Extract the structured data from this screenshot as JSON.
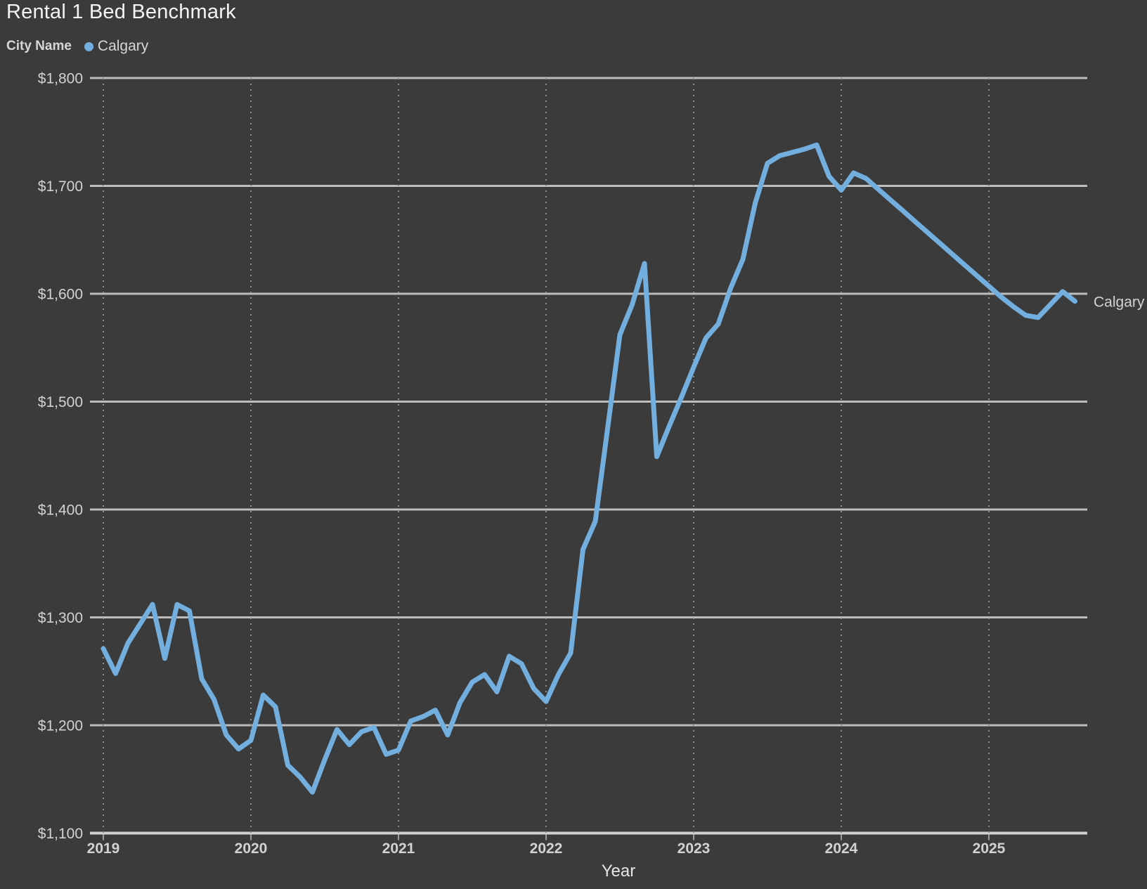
{
  "title": "Rental 1 Bed Benchmark",
  "legend": {
    "label": "City Name",
    "series_name": "Calgary"
  },
  "line_end_label": "Calgary",
  "x_axis_title": "Year",
  "colors": {
    "background": "#3b3b3b",
    "line": "#72aede",
    "gridline": "#bdbdbd",
    "axis_line": "#cfcfcf",
    "dotted_gridline": "#8c8c8c",
    "tick_stub": "#9a9a9a",
    "title_text": "#f4f4f4",
    "label_text": "#d2d2d2"
  },
  "chart_data": {
    "type": "line",
    "title": "Rental 1 Bed Benchmark",
    "xlabel": "Year",
    "ylabel": "",
    "ylim": [
      1100,
      1800
    ],
    "y_tick_step": 100,
    "y_ticks": [
      1800,
      1700,
      1600,
      1500,
      1400,
      1300,
      1200,
      1100
    ],
    "y_tick_labels": [
      "$1,800",
      "$1,700",
      "$1,600",
      "$1,500",
      "$1,400",
      "$1,300",
      "$1,200",
      "$1,100"
    ],
    "x_tick_labels": [
      "2019",
      "2020",
      "2021",
      "2022",
      "2023",
      "2024",
      "2025"
    ],
    "grid": "horizontal solid lines every $100, vertical dotted lines at each year",
    "legend_position": "top-left",
    "x_start": "2019-01",
    "x_step": "1 month",
    "x_end": "2025-08",
    "series": [
      {
        "name": "Calgary",
        "color": "#72aede",
        "values": [
          1271,
          1248,
          1276,
          1294,
          1312,
          1262,
          1312,
          1306,
          1243,
          1224,
          1191,
          1178,
          1186,
          1228,
          1217,
          1163,
          1152,
          1138,
          1168,
          1196,
          1182,
          1194,
          1198,
          1173,
          1177,
          1204,
          1208,
          1214,
          1191,
          1221,
          1240,
          1247,
          1231,
          1264,
          1257,
          1234,
          1222,
          1247,
          1267,
          1363,
          1389,
          1475,
          1562,
          1590,
          1628,
          1449,
          1477,
          1504,
          1532,
          1559,
          1572,
          1605,
          1632,
          1684,
          1721,
          1728,
          1731,
          1734,
          1738,
          1709,
          1696,
          1712,
          1707,
          1697,
          1687,
          1677,
          1667,
          1657,
          1647,
          1637,
          1627,
          1617,
          1607,
          1597,
          1588,
          1580,
          1578,
          1590,
          1602,
          1593
        ]
      }
    ]
  }
}
